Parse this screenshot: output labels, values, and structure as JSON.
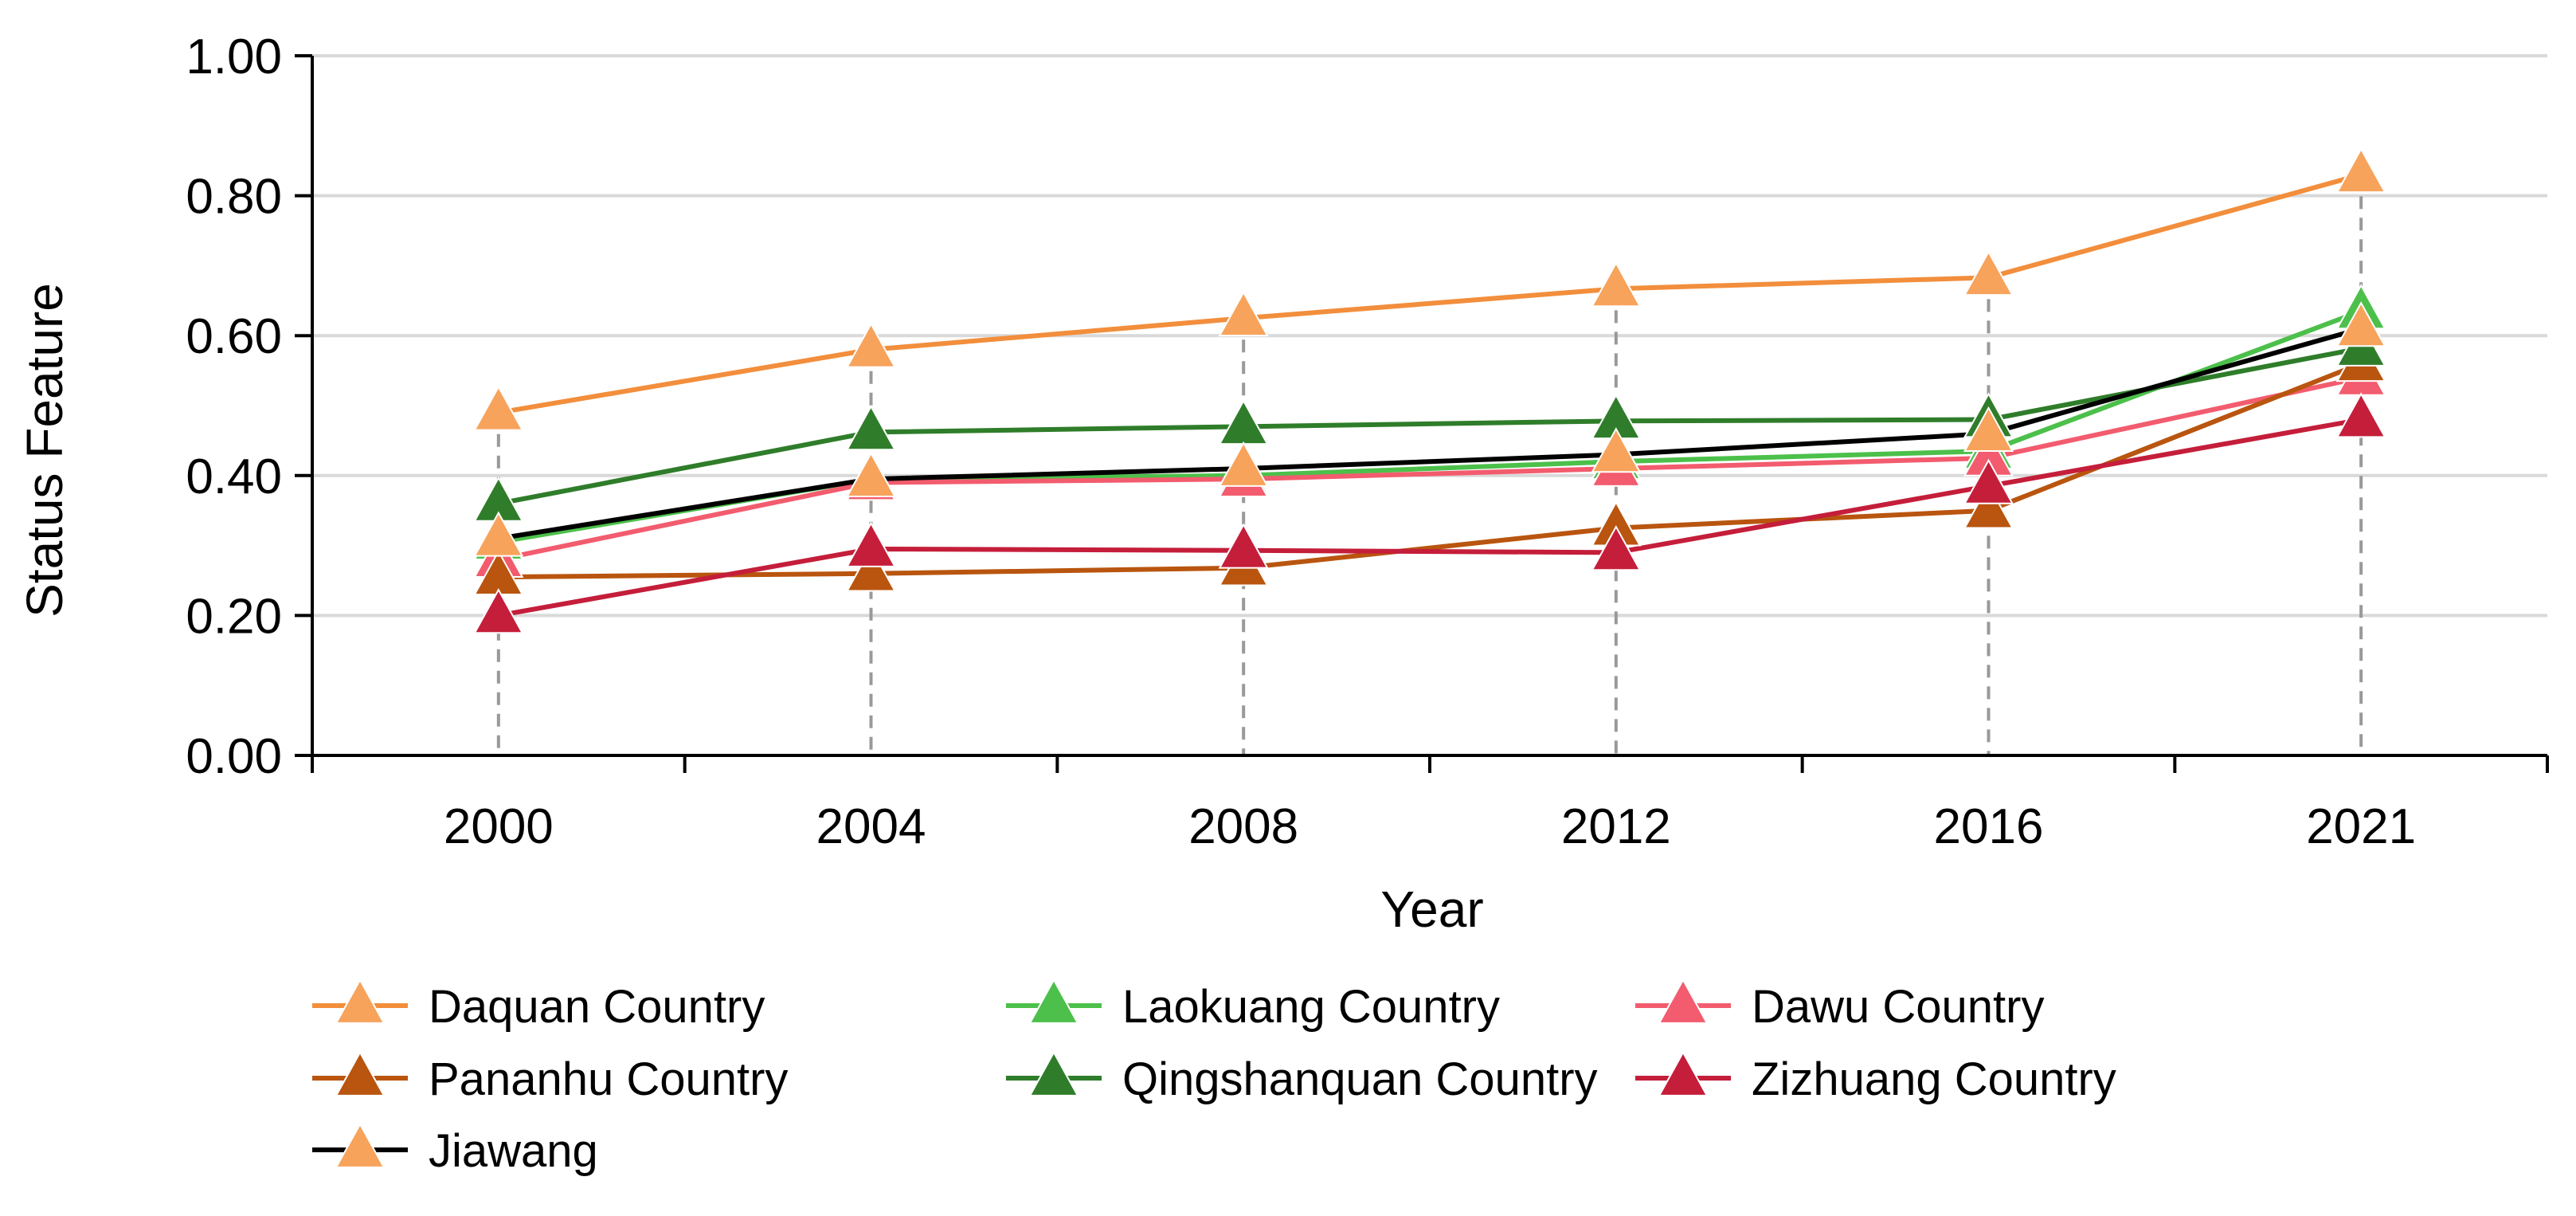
{
  "chart_data": {
    "type": "line",
    "title": "",
    "xlabel": "Year",
    "ylabel": "Status Feature",
    "categories": [
      "2000",
      "2004",
      "2008",
      "2012",
      "2016",
      "2021"
    ],
    "ylim": [
      0,
      1
    ],
    "yticks": [
      "0.00",
      "0.20",
      "0.40",
      "0.60",
      "0.80",
      "1.00"
    ],
    "grid": "horizontal",
    "legend_position": "bottom",
    "series": [
      {
        "name": "Daquan Country",
        "color": "#f28e3c",
        "marker_color": "#f7a35c",
        "values": [
          0.49,
          0.58,
          0.625,
          0.667,
          0.683,
          0.83
        ]
      },
      {
        "name": "Laokuang Country",
        "color": "#4cc04a",
        "marker_color": "#4cc04a",
        "values": [
          0.305,
          0.395,
          0.4,
          0.42,
          0.435,
          0.635
        ]
      },
      {
        "name": "Dawu Country",
        "color": "#f25c6e",
        "marker_color": "#f25c6e",
        "values": [
          0.28,
          0.39,
          0.395,
          0.41,
          0.425,
          0.54
        ]
      },
      {
        "name": "Pananhu Country",
        "color": "#b9550f",
        "marker_color": "#b9550f",
        "values": [
          0.255,
          0.26,
          0.268,
          0.325,
          0.35,
          0.56
        ]
      },
      {
        "name": "Qingshanquan Country",
        "color": "#2f7d2a",
        "marker_color": "#2f7d2a",
        "values": [
          0.36,
          0.462,
          0.47,
          0.478,
          0.48,
          0.582
        ]
      },
      {
        "name": "Zizhuang Country",
        "color": "#c41e3a",
        "marker_color": "#c41e3a",
        "values": [
          0.2,
          0.295,
          0.293,
          0.29,
          0.385,
          0.48
        ]
      },
      {
        "name": "Jiawang",
        "color": "#000000",
        "marker_color": "#f7a35c",
        "values": [
          0.31,
          0.395,
          0.41,
          0.43,
          0.46,
          0.61
        ]
      }
    ]
  }
}
